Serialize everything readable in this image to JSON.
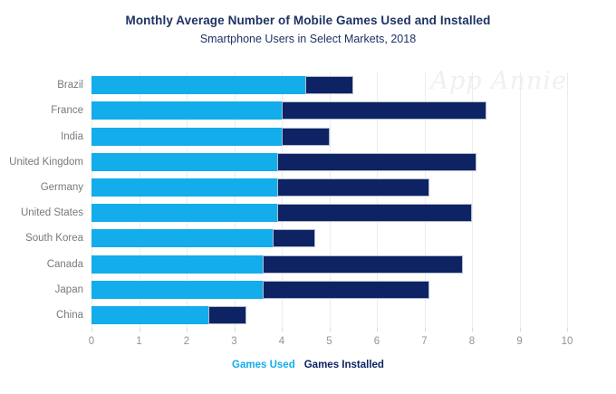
{
  "header": {
    "title": "Monthly Average Number of Mobile Games Used and Installed",
    "subtitle": "Smartphone Users in Select Markets, 2018"
  },
  "watermark": "App Annie",
  "colors": {
    "games_used": "#12ADEA",
    "games_installed": "#0E2363",
    "installed_border": "#B5BBCE",
    "title_text": "#1E3263",
    "category_text": "#77797C",
    "axis_text": "#919396",
    "gridline": "#ECECEF",
    "tick": "#D9D9DC",
    "watermark_text": "#F0F0F4",
    "background": "#FFFFFF"
  },
  "legend": {
    "items": [
      {
        "label": "Games Used",
        "color": "#12ADEA"
      },
      {
        "label": "Games Installed",
        "color": "#0E2363"
      }
    ]
  },
  "chart_data": {
    "type": "bar",
    "orientation": "horizontal",
    "title": "Monthly Average Number of Mobile Games Used and Installed",
    "subtitle": "Smartphone Users in Select Markets, 2018",
    "categories": [
      "Brazil",
      "France",
      "India",
      "United Kingdom",
      "Germany",
      "United States",
      "South Korea",
      "Canada",
      "Japan",
      "China"
    ],
    "series": [
      {
        "name": "Games Used",
        "color": "#12ADEA",
        "values": [
          4.5,
          4.0,
          4.0,
          3.9,
          3.9,
          3.9,
          3.8,
          3.6,
          3.6,
          2.45
        ]
      },
      {
        "name": "Games Installed",
        "color": "#0E2363",
        "values": [
          5.5,
          8.3,
          5.0,
          8.1,
          7.1,
          8.0,
          4.7,
          7.8,
          7.1,
          3.25
        ]
      }
    ],
    "series_note": "Games Installed values are the right end of each bar; the navy segment is drawn from the Games Used value to the Games Installed value (bars share a common baseline at 0).",
    "xlabel": "",
    "ylabel": "",
    "xlim": [
      0,
      10
    ],
    "xticks": [
      0,
      1,
      2,
      3,
      4,
      5,
      6,
      7,
      8,
      9,
      10
    ],
    "grid": "vertical",
    "legend_position": "bottom"
  }
}
